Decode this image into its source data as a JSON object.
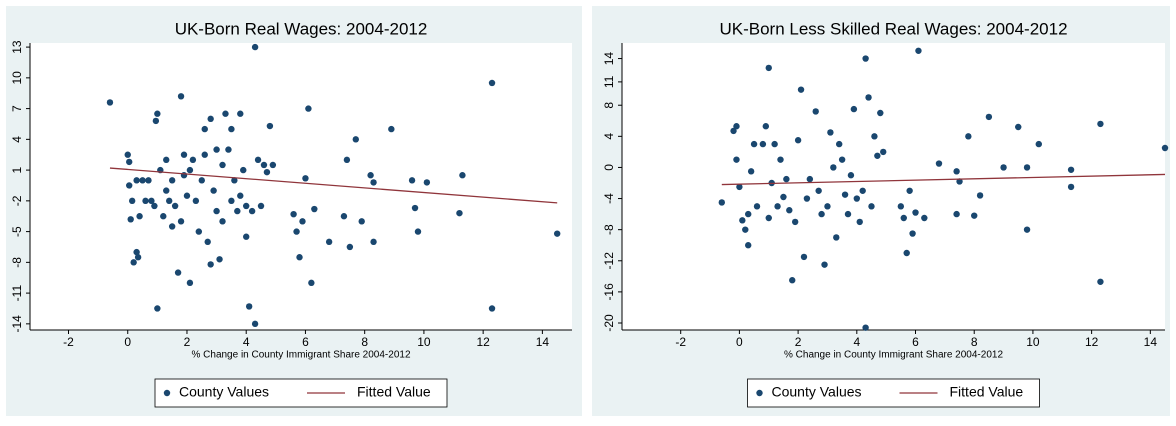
{
  "chart_data": [
    {
      "type": "scatter",
      "title": "UK-Born Real Wages: 2004-2012",
      "xlabel": "% Change in County Immigrant Share 2004-2012",
      "xlim": [
        -3.3,
        15
      ],
      "ylim": [
        -14.6,
        13.4
      ],
      "xticks": [
        -2,
        0,
        2,
        4,
        6,
        8,
        10,
        12,
        14
      ],
      "yticks": [
        -14,
        -11,
        -8,
        -5,
        -2,
        1,
        4,
        7,
        10,
        13
      ],
      "series": [
        {
          "name": "County Values",
          "type": "scatter",
          "color": "#1a476f",
          "x": [
            -0.6,
            0,
            0.05,
            0.05,
            0.1,
            0.15,
            0.2,
            0.3,
            0.35,
            0.3,
            0.5,
            0.4,
            0.6,
            0.7,
            0.8,
            0.9,
            0.95,
            1.0,
            1.0,
            1.1,
            1.2,
            1.3,
            1.3,
            1.4,
            1.5,
            1.5,
            1.6,
            1.7,
            1.8,
            1.8,
            1.9,
            1.9,
            2.0,
            2.1,
            2.1,
            2.2,
            2.3,
            2.4,
            2.5,
            2.6,
            2.6,
            2.7,
            2.8,
            2.8,
            2.9,
            3.0,
            3.0,
            3.1,
            3.2,
            3.2,
            3.3,
            3.4,
            3.5,
            3.5,
            3.6,
            3.7,
            3.8,
            3.8,
            3.9,
            4.0,
            4.0,
            4.1,
            4.2,
            4.3,
            4.3,
            4.4,
            4.5,
            4.6,
            4.7,
            4.8,
            4.9,
            5.6,
            5.7,
            5.8,
            5.9,
            6.0,
            6.1,
            6.2,
            6.3,
            6.8,
            7.3,
            7.4,
            7.5,
            7.7,
            7.9,
            8.2,
            8.3,
            8.3,
            8.9,
            9.6,
            9.7,
            9.8,
            10.1,
            11.2,
            11.3,
            12.3,
            12.3,
            14.5
          ],
          "values": [
            7.6,
            2.5,
            -0.5,
            1.8,
            -3.8,
            -2.0,
            -8,
            -7,
            -7.5,
            0,
            0,
            -3.5,
            -2,
            0,
            -2,
            -2.5,
            5.8,
            6.5,
            -12.5,
            1,
            -3.5,
            -1,
            2,
            -2,
            -4.5,
            0,
            -2.5,
            -9,
            8.2,
            -4,
            0.5,
            2.5,
            -1.5,
            -10,
            1,
            2,
            -2,
            -5,
            0,
            5,
            2.5,
            -6,
            -8.2,
            6,
            -1,
            -3,
            3,
            -7.7,
            -4,
            1.5,
            6.5,
            3,
            5,
            -2,
            0,
            -3,
            -1.5,
            6.5,
            1,
            -2.5,
            -5.5,
            -12.3,
            -3,
            13,
            -14,
            2,
            -2.5,
            1.5,
            0.8,
            5.3,
            1.5,
            -3.3,
            -5,
            -7.5,
            -4,
            0.2,
            7,
            -10,
            -2.8,
            -6,
            -3.5,
            2,
            -6.5,
            4,
            -4,
            0.5,
            -6,
            -0.2,
            5,
            0,
            -2.7,
            -5,
            -0.2,
            -3.2,
            0.5,
            9.5,
            -12.5,
            -5.2
          ]
        },
        {
          "name": "Fitted Value",
          "type": "line",
          "color": "#90353b",
          "x": [
            -0.6,
            14.5
          ],
          "values": [
            1.2,
            -2.2
          ]
        }
      ]
    },
    {
      "type": "scatter",
      "title": "UK-Born Less Skilled Real Wages: 2004-2012",
      "xlabel": "% Change in County Immigrant Share 2004-2012",
      "xlim": [
        -4,
        14.5
      ],
      "ylim": [
        -20.9,
        16
      ],
      "xticks": [
        -2,
        0,
        2,
        4,
        6,
        8,
        10,
        12,
        14
      ],
      "yticks": [
        -20,
        -16,
        -12,
        -8,
        -4,
        0,
        4,
        8,
        11,
        14
      ],
      "series": [
        {
          "name": "County Values",
          "type": "scatter",
          "color": "#1a476f",
          "x": [
            -0.6,
            -0.2,
            -0.1,
            -0.1,
            0,
            0.1,
            0.2,
            0.3,
            0.3,
            0.4,
            0.5,
            0.6,
            0.8,
            0.9,
            1.0,
            1.0,
            1.1,
            1.2,
            1.3,
            1.4,
            1.5,
            1.6,
            1.7,
            1.8,
            1.9,
            2.0,
            2.1,
            2.2,
            2.3,
            2.4,
            2.6,
            2.7,
            2.8,
            2.9,
            3.0,
            3.1,
            3.2,
            3.3,
            3.4,
            3.5,
            3.6,
            3.7,
            3.8,
            3.9,
            4.0,
            4.1,
            4.2,
            4.3,
            4.3,
            4.4,
            4.5,
            4.6,
            4.7,
            4.8,
            4.9,
            5.5,
            5.6,
            5.7,
            5.8,
            5.9,
            6.0,
            6.1,
            6.3,
            6.8,
            7.4,
            7.4,
            7.5,
            7.8,
            8.0,
            8.2,
            8.5,
            9.0,
            9.5,
            9.8,
            9.8,
            10.2,
            11.3,
            11.3,
            12.3,
            12.3,
            14.5
          ],
          "values": [
            -4.5,
            4.7,
            5.3,
            1,
            -2.5,
            -6.8,
            -8,
            -10,
            -6,
            -0.5,
            3,
            -5,
            3,
            5.3,
            12.8,
            -6.5,
            -2,
            3,
            -5,
            1,
            -3.8,
            -1.5,
            -5.5,
            -14.5,
            -7,
            3.5,
            10,
            -11.5,
            -4,
            -1.5,
            7.2,
            -3,
            -6,
            -12.5,
            -5,
            4.5,
            0,
            -9,
            3,
            1,
            -3.5,
            -6,
            -1,
            7.5,
            -4,
            -7,
            -3,
            14,
            -20.6,
            9,
            -5,
            4,
            1.5,
            7,
            2,
            -5,
            -6.5,
            -11,
            -3,
            -8.5,
            -5.8,
            15,
            -6.5,
            0.5,
            -0.5,
            -6,
            -1.8,
            4,
            -6.2,
            -3.6,
            6.5,
            0,
            5.2,
            0,
            -8,
            3,
            -0.3,
            -2.5,
            5.6,
            -14.7,
            2.5
          ]
        },
        {
          "name": "Fitted Value",
          "type": "line",
          "color": "#90353b",
          "x": [
            -0.6,
            14.5
          ],
          "values": [
            -2.2,
            -0.9
          ]
        }
      ]
    }
  ]
}
